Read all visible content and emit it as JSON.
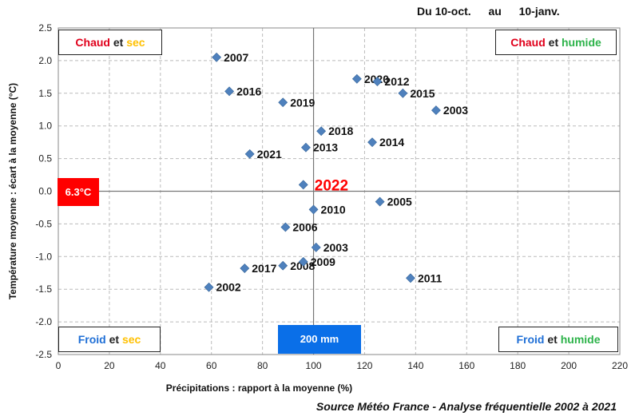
{
  "header": {
    "period_prefix": "Du",
    "start": "10-oct.",
    "mid": "au",
    "end": "10-janv."
  },
  "quadrants": {
    "top_left": {
      "word1": "Chaud",
      "conj": "et",
      "word2": "sec"
    },
    "top_right": {
      "word1": "Chaud",
      "conj": "et",
      "word2": "humide"
    },
    "bottom_left": {
      "word1": "Froid",
      "conj": "et",
      "word2": "sec"
    },
    "bottom_right": {
      "word1": "Froid",
      "conj": "et",
      "word2": "humide"
    }
  },
  "reference_temp_label": "6.3°C",
  "reference_precip_label": "200 mm",
  "source": "Source Météo France - Analyse fréquentielle 2002 à 2021",
  "colors": {
    "point": "#4f81bd",
    "highlight": "#ff0000",
    "chaud": "#e0001b",
    "froid": "#1f6fd6",
    "sec": "#ffc000",
    "humide": "#2db34a",
    "grid": "#bbbbbb"
  },
  "chart_data": {
    "type": "scatter",
    "xlabel": "Précipitations : rapport à la moyenne (%)",
    "ylabel": "Température moyenne : écart à la moyenne (°C)",
    "xlim": [
      0,
      220
    ],
    "ylim": [
      -2.5,
      2.5
    ],
    "x_ticks": [
      "0",
      "20",
      "40",
      "60",
      "80",
      "100",
      "120",
      "140",
      "160",
      "180",
      "200",
      "220"
    ],
    "y_ticks": [
      "2.5",
      "2.0",
      "1.5",
      "1.0",
      "0.5",
      "0.0",
      "-0.5",
      "-1.0",
      "-1.5",
      "-2.0",
      "-2.5"
    ],
    "grid": true,
    "points": [
      {
        "label": "2007",
        "x": 62,
        "y": 2.05
      },
      {
        "label": "2016",
        "x": 67,
        "y": 1.53
      },
      {
        "label": "2019",
        "x": 88,
        "y": 1.36
      },
      {
        "label": "2020",
        "x": 117,
        "y": 1.72
      },
      {
        "label": "2012",
        "x": 125,
        "y": 1.68
      },
      {
        "label": "2015",
        "x": 135,
        "y": 1.5
      },
      {
        "label": "2003",
        "x": 148,
        "y": 1.24
      },
      {
        "label": "2018",
        "x": 103,
        "y": 0.92
      },
      {
        "label": "2013",
        "x": 97,
        "y": 0.67
      },
      {
        "label": "2014",
        "x": 123,
        "y": 0.75
      },
      {
        "label": "2021",
        "x": 75,
        "y": 0.57
      },
      {
        "label": "2022",
        "x": 96,
        "y": 0.1,
        "highlight": true
      },
      {
        "label": "2005",
        "x": 126,
        "y": -0.16
      },
      {
        "label": "2010",
        "x": 100,
        "y": -0.28
      },
      {
        "label": "2006",
        "x": 89,
        "y": -0.55
      },
      {
        "label": "2003",
        "x": 101,
        "y": -0.86
      },
      {
        "label": "2008",
        "x": 88,
        "y": -1.14
      },
      {
        "label": "2009",
        "x": 96,
        "y": -1.08
      },
      {
        "label": "2017",
        "x": 73,
        "y": -1.18
      },
      {
        "label": "2002",
        "x": 59,
        "y": -1.47
      },
      {
        "label": "2011",
        "x": 138,
        "y": -1.33
      }
    ]
  }
}
